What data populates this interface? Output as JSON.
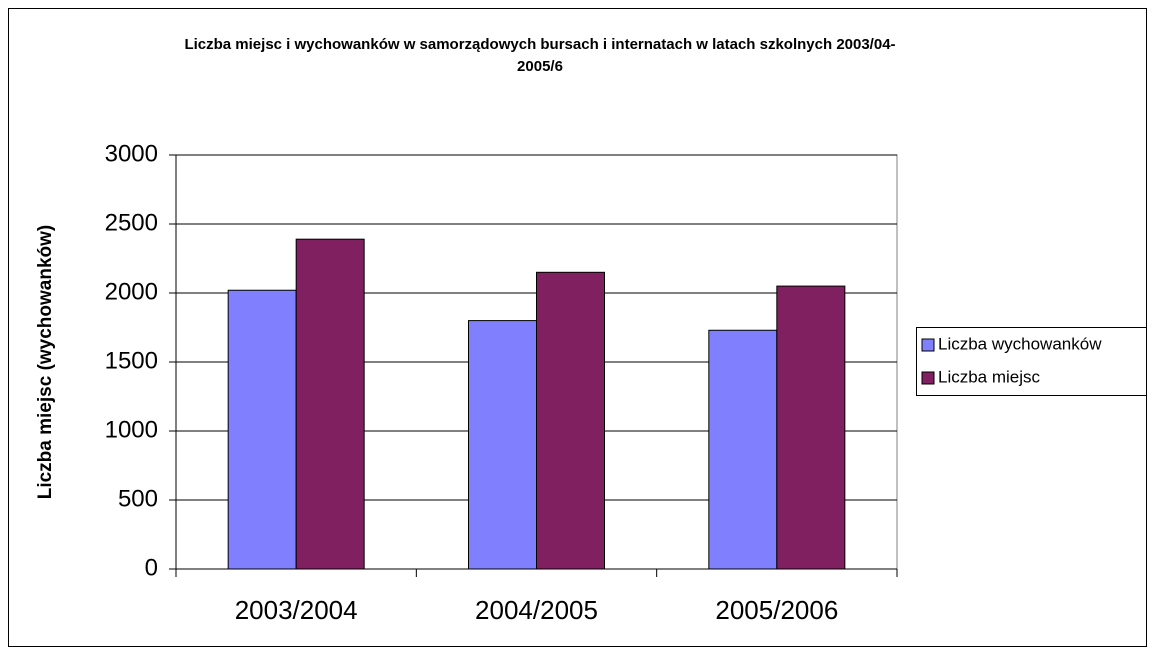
{
  "chart_data": {
    "type": "bar",
    "title": "Liczba miejsc i wychowanków w samorządowych bursach i internatach w latach szkolnych 2003/04-2005/6",
    "y_label": "Liczba miejsc (wychowanków)",
    "categories": [
      "2003/2004",
      "2004/2005",
      "2005/2006"
    ],
    "series": [
      {
        "name": "Liczba wychowanków",
        "color": "#8080ff",
        "values": [
          2020,
          1800,
          1730
        ]
      },
      {
        "name": "Liczba miejsc",
        "color": "#802060",
        "values": [
          2390,
          2150,
          2050
        ]
      }
    ],
    "ylim": [
      0,
      3000
    ],
    "yticks": [
      0,
      500,
      1000,
      1500,
      2000,
      2500,
      3000
    ],
    "grid": true,
    "legend": "right"
  }
}
